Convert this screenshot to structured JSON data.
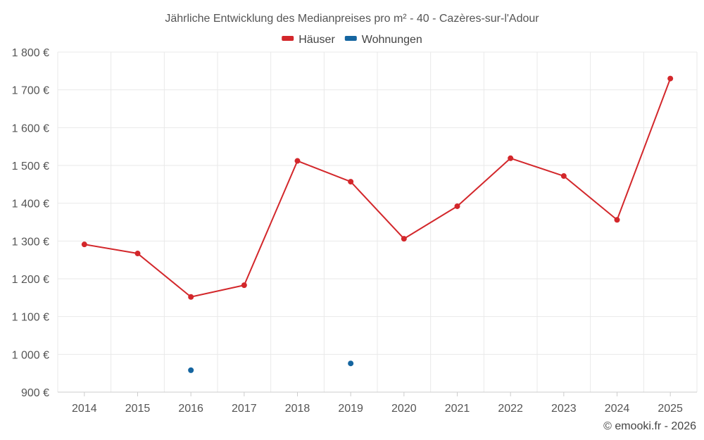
{
  "chart_data": {
    "type": "line",
    "title": "Jährliche Entwicklung des Medianpreises pro m² - 40 - Cazères-sur-l'Adour",
    "xlabel": "",
    "ylabel": "",
    "categories": [
      "2014",
      "2015",
      "2016",
      "2017",
      "2018",
      "2019",
      "2020",
      "2021",
      "2022",
      "2023",
      "2024",
      "2025"
    ],
    "ylim": [
      900,
      1800
    ],
    "yticks": [
      900,
      1000,
      1100,
      1200,
      1300,
      1400,
      1500,
      1600,
      1700,
      1800
    ],
    "ytick_labels": [
      "900 €",
      "1 000 €",
      "1 100 €",
      "1 200 €",
      "1 300 €",
      "1 400 €",
      "1 500 €",
      "1 600 €",
      "1 700 €",
      "1 800 €"
    ],
    "grid": true,
    "legend_position": "top-center",
    "series": [
      {
        "name": "Häuser",
        "color": "#d3272b",
        "values": [
          1291,
          1267,
          1152,
          1183,
          1512,
          1457,
          1306,
          1392,
          1519,
          1472,
          1356,
          1730
        ]
      },
      {
        "name": "Wohnungen",
        "color": "#1565a0",
        "values": [
          null,
          null,
          958,
          null,
          null,
          976,
          null,
          null,
          null,
          null,
          null,
          null
        ]
      }
    ]
  },
  "credit": "© emooki.fr - 2026"
}
